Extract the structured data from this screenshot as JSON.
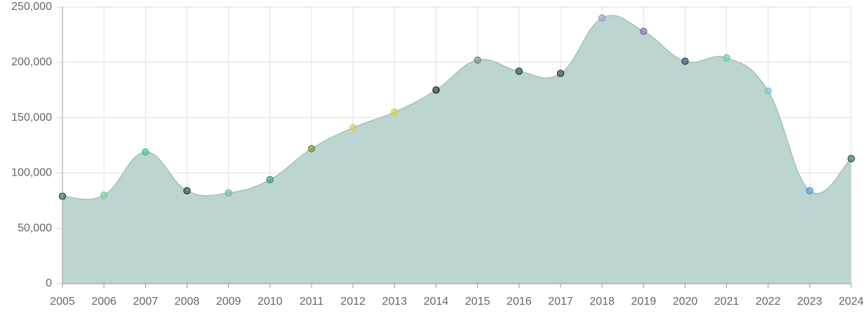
{
  "chart_data": {
    "type": "area",
    "categories": [
      "2005",
      "2006",
      "2007",
      "2008",
      "2009",
      "2010",
      "2011",
      "2012",
      "2013",
      "2014",
      "2015",
      "2016",
      "2017",
      "2018",
      "2019",
      "2020",
      "2021",
      "2022",
      "2023",
      "2024"
    ],
    "values": [
      79000,
      80000,
      119000,
      84000,
      82000,
      94000,
      122000,
      141000,
      155000,
      175000,
      202000,
      192000,
      190000,
      240000,
      228000,
      201000,
      204000,
      174000,
      84000,
      113000
    ],
    "color": "#b9d3cd",
    "point_colors": [
      "#1f5f4f",
      "#7fd0a0",
      "#4cc38a",
      "#2a4a3a",
      "#6cc59a",
      "#35a07f",
      "#7a8c3a",
      "#d4d06a",
      "#e0c940",
      "#1e3b2f",
      "#6f8f86",
      "#2b4b45",
      "#3a3a5a",
      "#a49ac4",
      "#7d73a8",
      "#2a4a6a",
      "#6fd0a8",
      "#7ac8d8",
      "#4aa0d0",
      "#2a6a4a"
    ],
    "ylim": [
      0,
      250000
    ],
    "yticks": [
      0,
      {
        "value": 50000,
        "label": "50,000"
      },
      {
        "value": 100000,
        "label": "100,000"
      },
      {
        "value": 150000,
        "label": "150,000"
      },
      {
        "value": 200000,
        "label": "200,000"
      },
      {
        "value": 250000,
        "label": "250,000"
      }
    ],
    "grid": true
  }
}
